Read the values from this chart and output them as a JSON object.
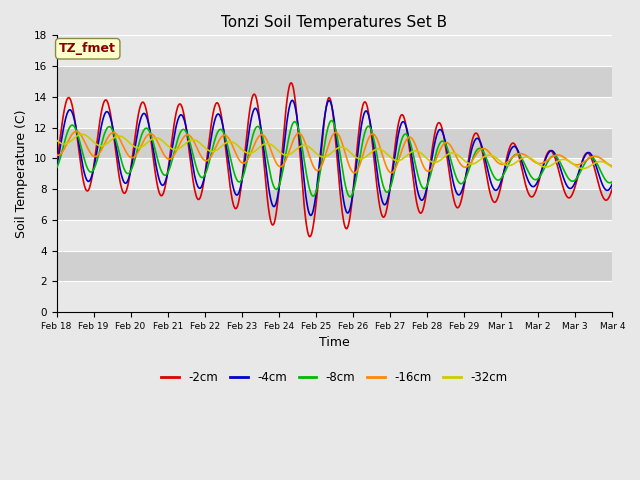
{
  "title": "Tonzi Soil Temperatures Set B",
  "xlabel": "Time",
  "ylabel": "Soil Temperature (C)",
  "ylim": [
    0,
    18
  ],
  "yticks": [
    0,
    2,
    4,
    6,
    8,
    10,
    12,
    14,
    16,
    18
  ],
  "annotation_text": "TZ_fmet",
  "annotation_color": "#880000",
  "annotation_bg": "#ffffcc",
  "annotation_border": "#888844",
  "series": {
    "-2cm": {
      "color": "#dd0000",
      "lw": 1.2
    },
    "-4cm": {
      "color": "#0000cc",
      "lw": 1.2
    },
    "-8cm": {
      "color": "#00bb00",
      "lw": 1.2
    },
    "-16cm": {
      "color": "#ff8800",
      "lw": 1.2
    },
    "-32cm": {
      "color": "#cccc00",
      "lw": 1.2
    }
  },
  "bg_light": "#e8e8e8",
  "bg_dark": "#d0d0d0",
  "grid_color": "#ffffff",
  "tick_labels": [
    "Feb 18",
    "Feb 19",
    "Feb 20",
    "Feb 21",
    "Feb 22",
    "Feb 23",
    "Feb 24",
    "Feb 25",
    "Feb 26",
    "Feb 27",
    "Feb 28",
    "Feb 29",
    "Mar 1",
    "Mar 2",
    "Mar 3",
    "Mar 4"
  ],
  "n_days": 16
}
